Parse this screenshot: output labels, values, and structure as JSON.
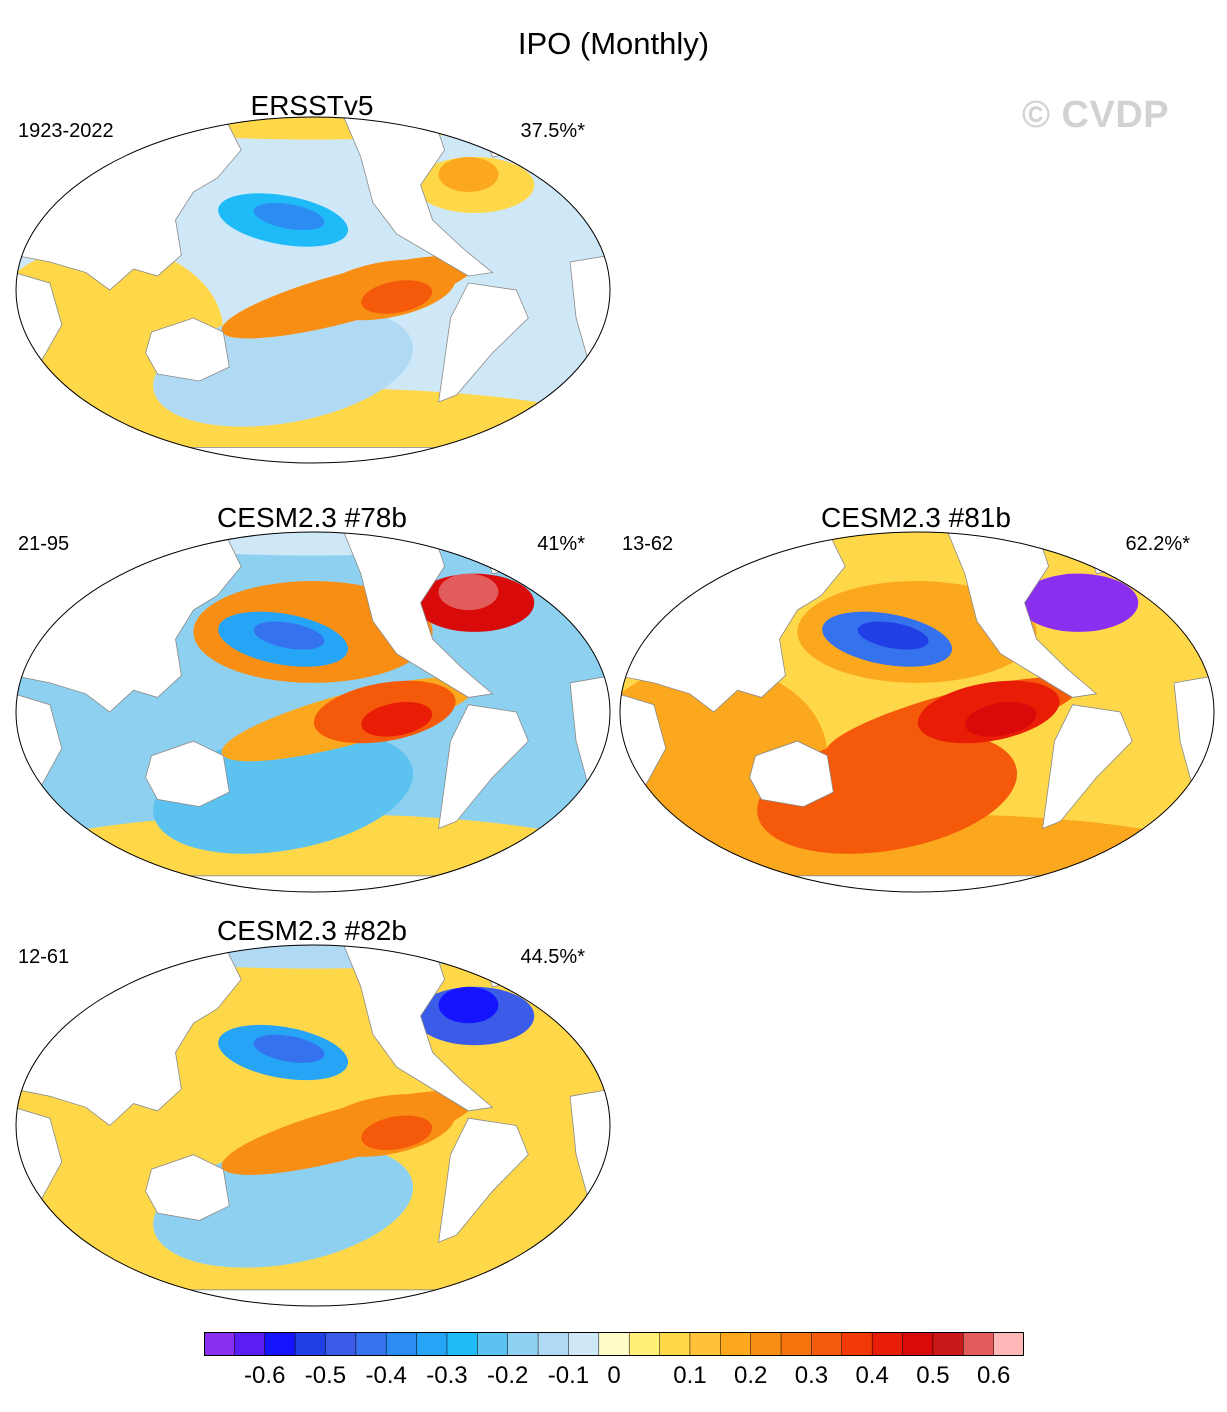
{
  "title": "IPO (Monthly)",
  "watermark": "© CVDP",
  "panels": [
    {
      "title": "ERSSTv5",
      "period": "1923-2022",
      "pct": "37.5%*",
      "pacific_w": 0.25,
      "pacific_c": 0.22,
      "kuroshio": -0.25,
      "north_pac": -0.05,
      "south_pac": -0.1,
      "atlantic": -0.05,
      "indian": 0.1,
      "southern": 0.05,
      "labrador": 0.05,
      "arctic": 0.1
    },
    {
      "title": "CESM2.3 #78b",
      "period": "21-95",
      "pct": "41%*",
      "pacific_w": 0.2,
      "pacific_c": 0.3,
      "kuroshio": -0.3,
      "north_pac": 0.25,
      "south_pac": -0.2,
      "atlantic": -0.15,
      "indian": -0.15,
      "southern": 0.1,
      "labrador": 0.5,
      "arctic": -0.05
    },
    {
      "title": "CESM2.3 #81b",
      "period": "13-62",
      "pct": "62.2%*",
      "pacific_w": 0.35,
      "pacific_c": 0.4,
      "kuroshio": -0.4,
      "north_pac": 0.2,
      "south_pac": 0.3,
      "atlantic": 0.1,
      "indian": 0.2,
      "southern": 0.15,
      "labrador": -0.7,
      "arctic": 0.05
    },
    {
      "title": "CESM2.3 #82b",
      "period": "12-61",
      "pct": "44.5%*",
      "pacific_w": 0.25,
      "pacific_c": 0.25,
      "kuroshio": -0.3,
      "north_pac": 0.1,
      "south_pac": -0.15,
      "atlantic": 0.05,
      "indian": 0.1,
      "southern": 0.05,
      "labrador": -0.45,
      "arctic": -0.1
    }
  ],
  "colorbar": {
    "colors": [
      "#8a2ff0",
      "#5a1ef5",
      "#1414ff",
      "#2040e6",
      "#3a5ce8",
      "#3572ee",
      "#2b8cf2",
      "#26a5f7",
      "#1fbaf8",
      "#5cc2f0",
      "#8ed0f0",
      "#b0daf4",
      "#cfe8f8",
      "#fffcc8",
      "#fff07a",
      "#ffd84a",
      "#ffc238",
      "#fca81e",
      "#f98e14",
      "#f7730d",
      "#f55a0a",
      "#f23a06",
      "#e91c06",
      "#d80a0a",
      "#c81818",
      "#e25c5c",
      "#ffb8b8"
    ],
    "labels": [
      "-0.6",
      "-0.5",
      "-0.4",
      "-0.3",
      "-0.2",
      "-0.1",
      "0",
      "0.1",
      "0.2",
      "0.3",
      "0.4",
      "0.5",
      "0.6"
    ]
  }
}
